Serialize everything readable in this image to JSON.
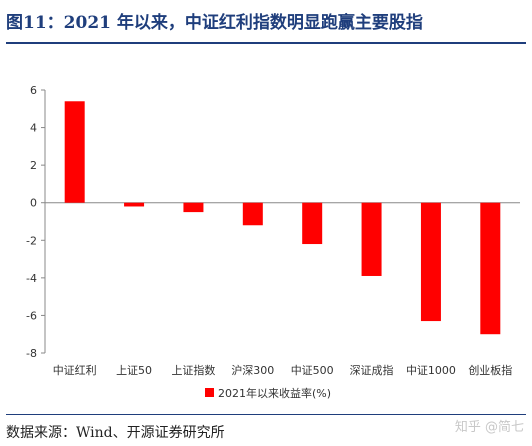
{
  "header": {
    "title": "图11：2021 年以来，中证红利指数明显跑赢主要股指"
  },
  "footer": {
    "source": "数据来源：Wind、开源证券研究所",
    "watermark": "知乎 @简七"
  },
  "chart_data": {
    "type": "bar",
    "categories": [
      "中证红利",
      "上证50",
      "上证指数",
      "沪深300",
      "中证500",
      "深证成指",
      "中证1000",
      "创业板指"
    ],
    "series": [
      {
        "name": "2021年以来收益率(%)",
        "values": [
          5.4,
          -0.2,
          -0.5,
          -1.2,
          -2.2,
          -3.9,
          -6.3,
          -7.0
        ]
      }
    ],
    "yticks": [
      6,
      4,
      2,
      0,
      -2,
      -4,
      -6,
      -8
    ],
    "ylim": [
      -8,
      6
    ],
    "legend_position": "bottom",
    "grid": false,
    "colors": {
      "bar": "#ff0000",
      "title": "#1f3e7c"
    }
  }
}
